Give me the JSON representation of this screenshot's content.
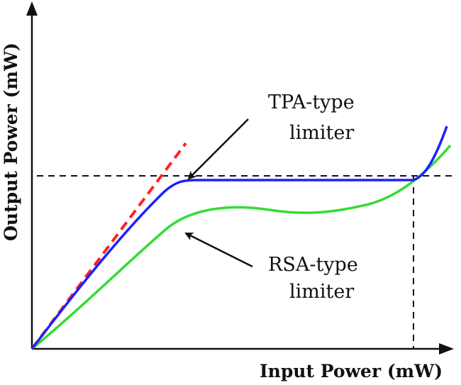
{
  "axes": {
    "x_label": "Input Power (mW)",
    "y_label": "Output Power (mW)"
  },
  "annotations": {
    "tpa_line1": "TPA-type",
    "tpa_line2": "limiter",
    "rsa_line1": "RSA-type",
    "rsa_line2": "limiter"
  },
  "colors": {
    "tpa_curve": "#1f1fff",
    "rsa_curve": "#33dd33",
    "linear_reference": "#ff2222",
    "axes": "#111111",
    "guides": "#111111"
  },
  "icons": {
    "x_axis_arrowhead": "arrowhead-right",
    "y_axis_arrowhead": "arrowhead-up",
    "tpa_pointer": "arrow",
    "rsa_pointer": "arrow"
  }
}
